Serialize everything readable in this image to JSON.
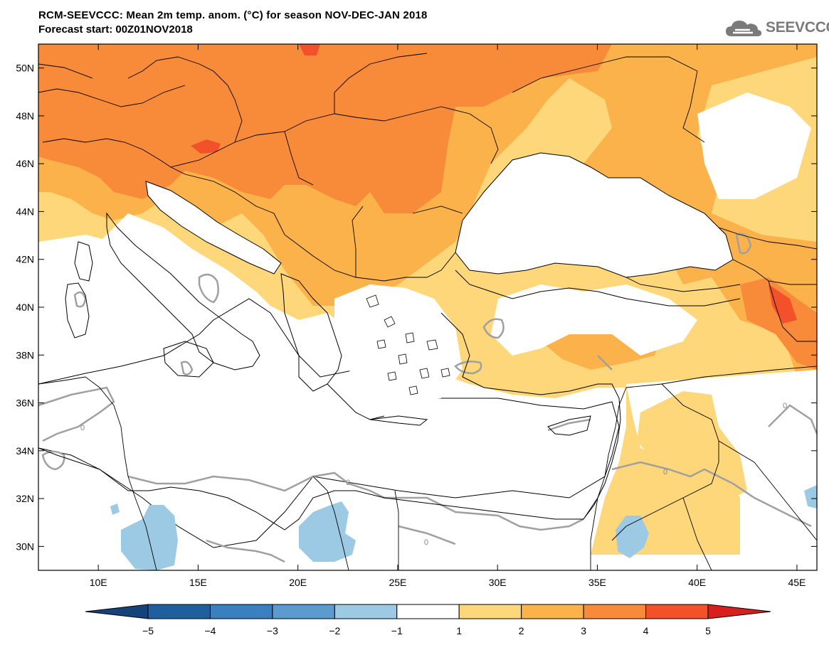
{
  "header": {
    "title": "RCM-SEEVCCC: Mean 2m temp. anom. (°C) for season NOV-DEC-JAN 2018",
    "subtitle": "Forecast start: 00Z01NOV2018"
  },
  "logo": {
    "text": "SEEVCCC",
    "icon": "cloud-icon",
    "color": "#7a7a7a"
  },
  "map": {
    "lon_range": [
      7,
      46
    ],
    "lat_range": [
      29,
      51
    ],
    "lat_ticks": [
      {
        "value": 50,
        "label": "50N"
      },
      {
        "value": 48,
        "label": "48N"
      },
      {
        "value": 46,
        "label": "46N"
      },
      {
        "value": 44,
        "label": "44N"
      },
      {
        "value": 42,
        "label": "42N"
      },
      {
        "value": 40,
        "label": "40N"
      },
      {
        "value": 38,
        "label": "38N"
      },
      {
        "value": 36,
        "label": "36N"
      },
      {
        "value": 34,
        "label": "34N"
      },
      {
        "value": 32,
        "label": "32N"
      },
      {
        "value": 30,
        "label": "30N"
      }
    ],
    "lon_ticks": [
      {
        "value": 10,
        "label": "10E"
      },
      {
        "value": 15,
        "label": "15E"
      },
      {
        "value": 20,
        "label": "20E"
      },
      {
        "value": 25,
        "label": "25E"
      },
      {
        "value": 30,
        "label": "30E"
      },
      {
        "value": 35,
        "label": "35E"
      },
      {
        "value": 40,
        "label": "40E"
      },
      {
        "value": 45,
        "label": "45E"
      }
    ],
    "contour_label": "0"
  },
  "colorbar": {
    "bins": [
      {
        "color": "#1f5fa0"
      },
      {
        "color": "#3a7fc0"
      },
      {
        "color": "#5b9bd0"
      },
      {
        "color": "#9ccae4"
      },
      {
        "color": "#ffffff"
      },
      {
        "color": "#fdd77a"
      },
      {
        "color": "#fbb24a"
      },
      {
        "color": "#f88b3a"
      },
      {
        "color": "#f2512a"
      }
    ],
    "under_color": "#16427a",
    "over_color": "#d6201e",
    "labels": [
      "−5",
      "−4",
      "−3",
      "−2",
      "−1",
      "1",
      "2",
      "3",
      "4",
      "5"
    ]
  }
}
